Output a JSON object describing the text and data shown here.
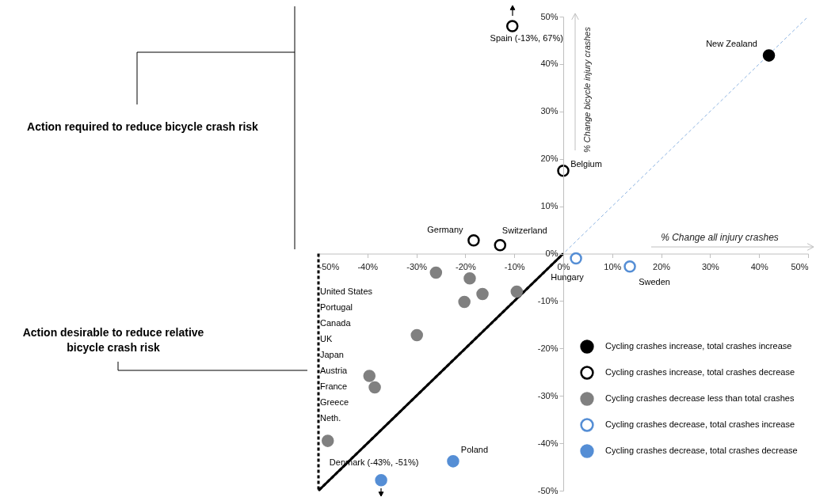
{
  "chart_data": {
    "type": "scatter",
    "xlabel": "% Change all injury crashes",
    "ylabel": "% Change bicycle injury crashes",
    "xlim": [
      -50,
      50
    ],
    "ylim": [
      -50,
      50
    ],
    "xticks": [
      {
        "value": -50,
        "label": "-50%"
      },
      {
        "value": -40,
        "label": "-40%"
      },
      {
        "value": -30,
        "label": "-30%"
      },
      {
        "value": -20,
        "label": "-20%"
      },
      {
        "value": -10,
        "label": "-10%"
      },
      {
        "value": 0,
        "label": "0%"
      },
      {
        "value": 10,
        "label": "10%"
      },
      {
        "value": 20,
        "label": "20%"
      },
      {
        "value": 30,
        "label": "30%"
      },
      {
        "value": 40,
        "label": "40%"
      },
      {
        "value": 50,
        "label": "50%"
      }
    ],
    "yticks": [
      {
        "value": -50,
        "label": "-50%"
      },
      {
        "value": -40,
        "label": "-40%"
      },
      {
        "value": -30,
        "label": "-30%"
      },
      {
        "value": -20,
        "label": "-20%"
      },
      {
        "value": -10,
        "label": "-10%"
      },
      {
        "value": 0,
        "label": "0%"
      },
      {
        "value": 10,
        "label": "10%"
      },
      {
        "value": 20,
        "label": "20%"
      },
      {
        "value": 30,
        "label": "30%"
      },
      {
        "value": 40,
        "label": "40%"
      },
      {
        "value": 50,
        "label": "50%"
      }
    ],
    "grid": false,
    "legend": "bottom right",
    "series": [
      {
        "name": "Cycling crashes increase, total crashes increase",
        "color": "#000000",
        "marker": "circle",
        "x": [
          42
        ],
        "values": [
          41.8
        ]
      },
      {
        "name": "Cycling crashes increase, total crashes decrease",
        "color": "#000000",
        "marker": "circle",
        "x": [
          -10.4,
          0,
          -18.3,
          -12.9
        ],
        "values": [
          48,
          17.5,
          2.8,
          1.8
        ]
      },
      {
        "name": "Cycling crashes decrease less than total crashes",
        "color": "#808080",
        "marker": "circle",
        "x": [
          -26,
          -19.1,
          -16.5,
          -9.5,
          -20.2,
          -29.9,
          -39.6,
          -38.5,
          -48.1
        ],
        "values": [
          -4,
          -5.2,
          -8.5,
          -8,
          -10.2,
          -17.2,
          -25.8,
          -28.2,
          -39.5
        ]
      },
      {
        "name": "Cycling crashes decrease,  total crashes increase",
        "color": "#558ed5",
        "marker": "circle",
        "x": [
          2.6,
          13.6
        ],
        "values": [
          -1,
          -2.7
        ]
      },
      {
        "name": "Cycling crashes decrease, total crashes decrease",
        "color": "#558ed5",
        "marker": "circle",
        "x": [
          -22.5,
          -37.2
        ],
        "values": [
          -43.8,
          -47.8
        ]
      },
      {
        "type": "line",
        "color": "#8db4e2",
        "line_style": "dashed",
        "x": [
          -50,
          50
        ],
        "values": [
          -50,
          50
        ]
      },
      {
        "type": "line",
        "color": "#000000",
        "line_style": "dashed",
        "x": [
          0,
          -50,
          -50
        ],
        "values": [
          0,
          0,
          -50
        ]
      },
      {
        "type": "line",
        "color": "#000000",
        "line_style": "solid",
        "x": [
          0,
          -50
        ],
        "values": [
          0,
          -50
        ]
      }
    ],
    "annotations": [
      {
        "text": "Spain (-13%, 67%)",
        "x": -10.4,
        "y": 48
      },
      {
        "text": "New Zealand",
        "x": 42,
        "y": 41.8
      },
      {
        "text": "Belgium",
        "x": 0,
        "y": 17.5
      },
      {
        "text": "Germany",
        "x": -18.3,
        "y": 2.8
      },
      {
        "text": "Switzerland",
        "x": -12.9,
        "y": 1.8
      },
      {
        "text": "Hungary",
        "x": 2.6,
        "y": -1
      },
      {
        "text": "Sweden",
        "x": 13.6,
        "y": -2.7
      },
      {
        "text": "Poland",
        "x": -22.5,
        "y": -43.8
      },
      {
        "text": "Denmark (-43%, -51%)",
        "x": -37.2,
        "y": -47.8
      },
      "United States",
      "Portugal",
      "Canada",
      "UK",
      "Japan",
      "Austria",
      "France",
      "Greece",
      "Neth.",
      "Action required to reduce bicycle crash risk",
      "Action desirable to reduce relative bicycle crash risk"
    ]
  }
}
